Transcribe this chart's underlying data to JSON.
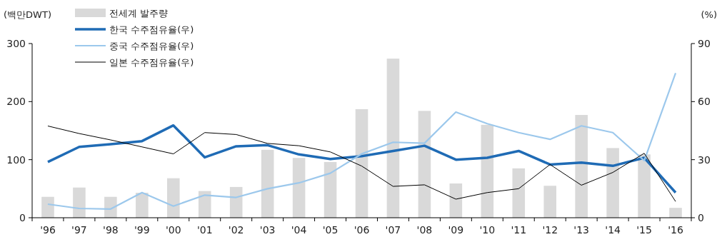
{
  "chart_data": {
    "type": "bar",
    "ylabel": "(백만DWT)",
    "y2label": "(%)",
    "categories": [
      "'96",
      "'97",
      "'98",
      "'99",
      "'00",
      "'01",
      "'02",
      "'03",
      "'04",
      "'05",
      "'06",
      "'07",
      "'08",
      "'09",
      "'10",
      "'11",
      "'12",
      "'13",
      "'14",
      "'15",
      "'16"
    ],
    "series": [
      {
        "name": "전세계 발주량",
        "color": "#d9d9d9",
        "values": [
          36,
          52,
          36,
          43,
          68,
          46,
          53,
          117,
          103,
          96,
          187,
          274,
          184,
          59,
          160,
          85,
          55,
          177,
          120,
          109,
          17
        ]
      },
      {
        "name": "한국 수주점유율(우)",
        "type": "line",
        "axis": "y2",
        "color": "#1f6bb5",
        "values": [
          28.8,
          36.6,
          38,
          39.6,
          47.7,
          31.2,
          36.9,
          37.5,
          32.7,
          30.3,
          31.8,
          34.5,
          37.2,
          30,
          31,
          34.5,
          27.5,
          28.5,
          26.8,
          31,
          13
        ]
      },
      {
        "name": "중국 수주점유율(우)",
        "type": "line",
        "axis": "y2",
        "color": "#9cc8ec",
        "values": [
          7,
          4.8,
          4.5,
          13,
          6,
          11.7,
          10.5,
          15,
          18,
          23,
          33,
          39,
          38.5,
          54.6,
          48.6,
          44,
          40.5,
          47.5,
          44,
          29.5,
          74.7
        ]
      },
      {
        "name": "일본 수주점유율(우)",
        "type": "line",
        "axis": "y2",
        "color": "#000000",
        "values": [
          47.4,
          43.5,
          40.2,
          36.6,
          33,
          44,
          43,
          38.4,
          37.2,
          34,
          26.7,
          16.2,
          17,
          9.6,
          13,
          15,
          27.5,
          16.8,
          23.4,
          33.3,
          8.4
        ]
      }
    ],
    "ylim": [
      0,
      300
    ],
    "yticks": [
      0,
      100,
      200,
      300
    ],
    "y2lim": [
      0,
      90
    ],
    "y2ticks": [
      0,
      30,
      60,
      90
    ],
    "legend": "top left",
    "grid": false
  }
}
